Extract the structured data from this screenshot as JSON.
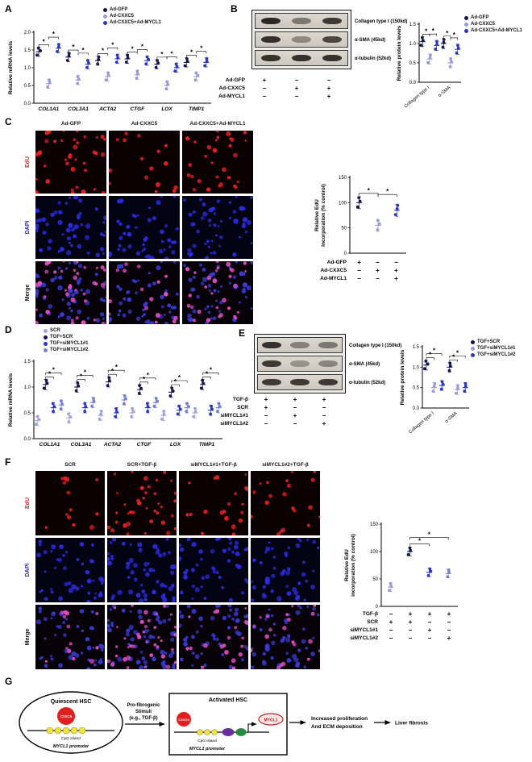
{
  "colors": {
    "ad_gfp": "#16164e",
    "ad_cxxc5": "#9a9ad8",
    "ad_cxxc5_mycl1": "#2a35c0",
    "scr": "#a2a2de",
    "tgf_si2": "#7280d2",
    "edu_red": "#e02020",
    "dapi_blue": "#2525cc",
    "cxxc5_red": "#e02020",
    "mycl1_red": "#cf1f1f",
    "cpg_yellow": "#f2e23c"
  },
  "figure": {
    "panels": {
      "A": {
        "label": "A"
      },
      "B": {
        "label": "B",
        "blots": [
          {
            "label": "Collagen type I (150kd)",
            "bands": [
              0.95,
              0.5,
              0.85
            ]
          },
          {
            "label": "α-SMA (45kd)",
            "bands": [
              0.9,
              0.4,
              0.78
            ]
          },
          {
            "label": "α-tubulin (52kd)",
            "bands": [
              0.9,
              0.9,
              0.9
            ]
          }
        ],
        "conditions": [
          {
            "label": "Ad-GFP",
            "signs": [
              "+",
              "−",
              "−"
            ]
          },
          {
            "label": "Ad-CXXC5",
            "signs": [
              "−",
              "+",
              "+"
            ]
          },
          {
            "label": "Ad-MYCL1",
            "signs": [
              "−",
              "−",
              "+"
            ]
          }
        ]
      },
      "C": {
        "label": "C",
        "microscopy": {
          "columns": [
            "Ad-GFP",
            "Ad-CXXC5",
            "Ad-CXXC5+Ad-MYCL1"
          ],
          "row_labels": [
            "EdU",
            "DAPI",
            "Merge"
          ],
          "edu_counts": [
            40,
            16,
            30
          ],
          "dapi_counts": [
            52,
            46,
            50
          ]
        },
        "chart_conditions": [
          {
            "label": "Ad-GFP",
            "signs": [
              "+",
              "−",
              "−"
            ]
          },
          {
            "label": "Ad-CXXC5",
            "signs": [
              "−",
              "+",
              "+"
            ]
          },
          {
            "label": "Ad-MYCL1",
            "signs": [
              "−",
              "−",
              "+"
            ]
          }
        ]
      },
      "D": {
        "label": "D"
      },
      "E": {
        "label": "E",
        "blots": [
          {
            "label": "Collagen type I (150kd)",
            "bands": [
              0.9,
              0.45,
              0.5
            ]
          },
          {
            "label": "α-SMA (45kd)",
            "bands": [
              0.85,
              0.35,
              0.42
            ]
          },
          {
            "label": "α-tubulin (52kd)",
            "bands": [
              0.85,
              0.85,
              0.85
            ]
          }
        ],
        "conditions": [
          {
            "label": "TGF-β",
            "signs": [
              "+",
              "+",
              "+"
            ]
          },
          {
            "label": "SCR",
            "signs": [
              "+",
              "−",
              "−"
            ]
          },
          {
            "label": "siMYCL1#1",
            "signs": [
              "−",
              "+",
              "−"
            ]
          },
          {
            "label": "siMYCL1#2",
            "signs": [
              "−",
              "−",
              "+"
            ]
          }
        ]
      },
      "F": {
        "label": "F",
        "microscopy": {
          "columns": [
            "SCR",
            "SCR+TGF-β",
            "siMYCL1#1+TGF-β",
            "siMYCL1#2+TGF-β"
          ],
          "row_labels": [
            "EdU",
            "DAPI",
            "Merge"
          ],
          "edu_counts": [
            13,
            38,
            20,
            20
          ],
          "dapi_counts": [
            46,
            56,
            48,
            48
          ]
        },
        "chart_conditions": [
          {
            "label": "TGF-β",
            "signs": [
              "−",
              "+",
              "+",
              "+"
            ]
          },
          {
            "label": "SCR",
            "signs": [
              "+",
              "+",
              "−",
              "−"
            ]
          },
          {
            "label": "siMYCL1#1",
            "signs": [
              "−",
              "−",
              "+",
              "−"
            ]
          },
          {
            "label": "siMYCL1#2",
            "signs": [
              "−",
              "−",
              "−",
              "+"
            ]
          }
        ]
      },
      "G": {
        "label": "G",
        "quiescent_title": "Quiescent HSC",
        "cxxc5_label": "CXXC5",
        "cpg_island_1": "CpG island",
        "promoter_1": "MYCL1 promoter",
        "stimuli_line1": "Pro-fibrogenic",
        "stimuli_line2": "Stimuli",
        "stimuli_line3": "(e.g., TGF-β)",
        "activated_title": "Activated HSC",
        "cxxc5_label_2": "CXXC5",
        "mycl1_label": "MYCL1",
        "cpg_island_2": "CpG island",
        "promoter_2": "MYCL1 promoter",
        "outcome_line1": "Increased proliferation",
        "outcome_line2": "And ECM deposition",
        "fibrosis": "Liver fibrosis"
      }
    }
  },
  "chart_data": [
    {
      "id": "A",
      "type": "scatter",
      "ylabel": "Relative mRNA levels",
      "ylim": [
        0,
        2.0
      ],
      "yticks": [
        0,
        0.5,
        1.0,
        1.5,
        2.0
      ],
      "ytick_decimals": 1,
      "xitalic": true,
      "categories": [
        "COL1A1",
        "COL3A1",
        "ACTA2",
        "CTGF",
        "LOX",
        "TIMP1"
      ],
      "sd": 0.13,
      "sig_label": "*",
      "sig_series": [
        [
          0,
          1
        ],
        [
          1,
          2
        ]
      ],
      "series": [
        {
          "name": "Ad-GFP",
          "color": "#16164e",
          "values": [
            1.45,
            1.3,
            1.2,
            1.25,
            1.1,
            1.15
          ]
        },
        {
          "name": "Ad-CXXC5",
          "color": "#9a9ad8",
          "values": [
            0.55,
            0.65,
            0.75,
            0.8,
            0.5,
            0.75
          ]
        },
        {
          "name": "Ad-CXXC5+Ad-MYCL1",
          "color": "#2a35c0",
          "values": [
            1.55,
            1.1,
            1.25,
            1.2,
            1.0,
            1.15
          ]
        }
      ]
    },
    {
      "id": "B",
      "type": "scatter",
      "ylabel": "Relative protein levels",
      "ylim": [
        0,
        1.5
      ],
      "yticks": [
        0,
        0.5,
        1.0,
        1.5
      ],
      "ytick_decimals": 1,
      "xrotate": -40,
      "categories": [
        "Collagen type I",
        "α-SMA"
      ],
      "sd": 0.13,
      "sig_label": "*",
      "sig_series": [
        [
          0,
          1
        ],
        [
          1,
          2
        ]
      ],
      "series": [
        {
          "name": "Ad-GFP",
          "color": "#16164e",
          "values": [
            1.05,
            1.0
          ]
        },
        {
          "name": "Ad-CXXC5",
          "color": "#9a9ad8",
          "values": [
            0.6,
            0.5
          ]
        },
        {
          "name": "Ad-CXXC5+Ad-MYCL1",
          "color": "#2a35c0",
          "values": [
            0.95,
            0.85
          ]
        }
      ]
    },
    {
      "id": "C",
      "type": "scatter",
      "ylabel": "Relative EdU|Incorporation (% control)",
      "ylim": [
        0,
        150
      ],
      "yticks": [
        0,
        50,
        100,
        150
      ],
      "ytick_decimals": 0,
      "categories": [
        "",
        "",
        ""
      ],
      "sd": 12,
      "sig_label": "*",
      "sig_cats": [
        [
          0,
          1
        ],
        [
          1,
          2
        ]
      ],
      "point_colors": [
        "#16164e",
        "#9a9ade",
        "#2a35c0"
      ],
      "series": [
        {
          "name": "",
          "color": "#16164e",
          "values": [
            100,
            55,
            85
          ]
        }
      ]
    },
    {
      "id": "D",
      "type": "scatter",
      "ylabel": "Relative mRNA levels",
      "ylim": [
        0,
        1.5
      ],
      "yticks": [
        0,
        0.5,
        1.0,
        1.5
      ],
      "ytick_decimals": 1,
      "xitalic": true,
      "categories": [
        "COL1A1",
        "COL3A1",
        "ACTA2",
        "CTGF",
        "LOX",
        "TIMP1"
      ],
      "sd": 0.1,
      "sig_label": "*",
      "sig_series": [
        [
          1,
          2
        ],
        [
          1,
          3
        ]
      ],
      "series": [
        {
          "name": "SCR",
          "color": "#a2a2de",
          "values": [
            0.35,
            0.4,
            0.45,
            0.5,
            0.45,
            0.5
          ]
        },
        {
          "name": "TGF+SCR",
          "color": "#16164e",
          "values": [
            1.05,
            1.0,
            1.1,
            0.95,
            0.9,
            1.05
          ]
        },
        {
          "name": "TGF+siMYCL1#1",
          "color": "#2a35c0",
          "values": [
            0.6,
            0.6,
            0.5,
            0.6,
            0.55,
            0.55
          ]
        },
        {
          "name": "TGF+siMYCL1#2",
          "color": "#7280d2",
          "values": [
            0.65,
            0.7,
            0.75,
            0.7,
            0.6,
            0.6
          ]
        }
      ]
    },
    {
      "id": "E",
      "type": "scatter",
      "ylabel": "Relative protein levels",
      "ylim": [
        0,
        1.5
      ],
      "yticks": [
        0,
        0.5,
        1.0,
        1.5
      ],
      "ytick_decimals": 1,
      "xrotate": -40,
      "categories": [
        "Collagen type I",
        "α-SMA"
      ],
      "sd": 0.12,
      "sig_label": "*",
      "sig_series": [
        [
          0,
          1
        ],
        [
          0,
          2
        ]
      ],
      "series": [
        {
          "name": "TGF+SCR",
          "color": "#16164e",
          "values": [
            1.05,
            1.0
          ]
        },
        {
          "name": "TGF+siMYCL1#1",
          "color": "#9a9ad8",
          "values": [
            0.5,
            0.45
          ]
        },
        {
          "name": "TGF+siMYCL1#2",
          "color": "#2a35c0",
          "values": [
            0.55,
            0.5
          ]
        }
      ]
    },
    {
      "id": "F",
      "type": "scatter",
      "ylabel": "Relative EdU|incorporation (% control)",
      "ylim": [
        0,
        150
      ],
      "yticks": [
        0,
        50,
        100,
        150
      ],
      "ytick_decimals": 0,
      "categories": [
        "",
        "",
        "",
        ""
      ],
      "sd": 8,
      "sig_label": "*",
      "sig_cats": [
        [
          1,
          2
        ],
        [
          1,
          3
        ]
      ],
      "point_colors": [
        "#9a9ade",
        "#16164e",
        "#2a35c0",
        "#7280d2"
      ],
      "series": [
        {
          "name": "",
          "color": "#16164e",
          "values": [
            35,
            100,
            62,
            60
          ]
        }
      ]
    }
  ]
}
